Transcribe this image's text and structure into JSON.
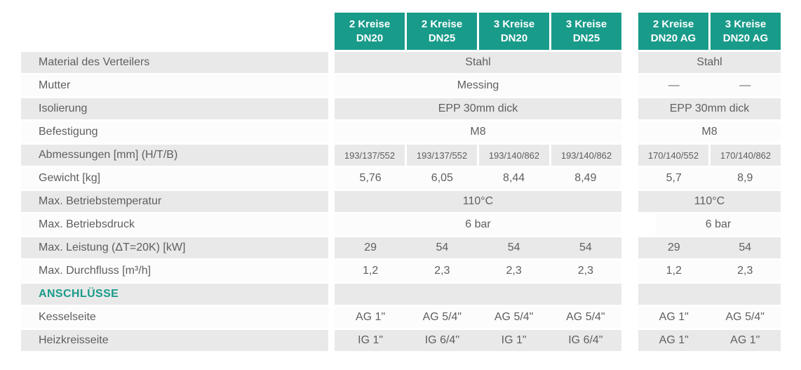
{
  "table": {
    "colors": {
      "accent_teal": "#199b8a",
      "row_gray": "#e9e9e9",
      "row_white": "#fcfcfc",
      "header_text": "#ffffff",
      "body_text": "#5f5f5f"
    },
    "header": {
      "group1": [
        "2 Kreise DN20",
        "2 Kreise DN25",
        "3 Kreise DN20",
        "3 Kreise DN25"
      ],
      "group2": [
        "2 Kreise DN20 AG",
        "3 Kreise DN20 AG"
      ]
    },
    "rows": [
      {
        "label": "Material des Verteilers",
        "g1_span": "Stahl",
        "g2_span": "Stahl"
      },
      {
        "label": "Mutter",
        "g1_span": "Messing",
        "g2_cells": [
          "—",
          "—"
        ]
      },
      {
        "label": "Isolierung",
        "g1_span": "EPP 30mm dick",
        "g2_span": "EPP 30mm dick"
      },
      {
        "label": "Befestigung",
        "g1_span": "M8",
        "g2_span": "M8"
      },
      {
        "label": "Abmessungen [mm] (H/T/B)",
        "g1_cells": [
          "193/137/552",
          "193/137/552",
          "193/140/862",
          "193/140/862"
        ],
        "g2_cells": [
          "170/140/552",
          "170/140/862"
        ]
      },
      {
        "label": "Gewicht [kg]",
        "g1_cells": [
          "5,76",
          "6,05",
          "8,44",
          "8,49"
        ],
        "g2_cells": [
          "5,7",
          "8,9"
        ]
      },
      {
        "label": "Max. Betriebstemperatur",
        "g1_span": "110°C",
        "g2_span": "110°C"
      },
      {
        "label": "Max. Betriebsdruck",
        "g1_span": "6 bar",
        "g2_span": "6 bar"
      },
      {
        "label": "Max. Leistung (ΔT=20K) [kW]",
        "g1_cells": [
          "29",
          "54",
          "54",
          "54"
        ],
        "g2_cells": [
          "29",
          "54"
        ]
      },
      {
        "label": "Max. Durchfluss [m³/h]",
        "g1_cells": [
          "1,2",
          "2,3",
          "2,3",
          "2,3"
        ],
        "g2_cells": [
          "1,2",
          "2,3"
        ]
      },
      {
        "label": "ANSCHLÜSSE"
      },
      {
        "label": "Kesselseite",
        "g1_cells": [
          "AG 1\"",
          "AG 5/4\"",
          "AG 5/4\"",
          "AG 5/4\""
        ],
        "g2_cells": [
          "AG 1\"",
          "AG 5/4\""
        ]
      },
      {
        "label": "Heizkreisseite",
        "g1_cells": [
          "IG 1\"",
          "IG 6/4\"",
          "IG 1\"",
          "IG 6/4\""
        ],
        "g2_cells": [
          "AG 1\"",
          "AG 1\""
        ]
      }
    ]
  }
}
